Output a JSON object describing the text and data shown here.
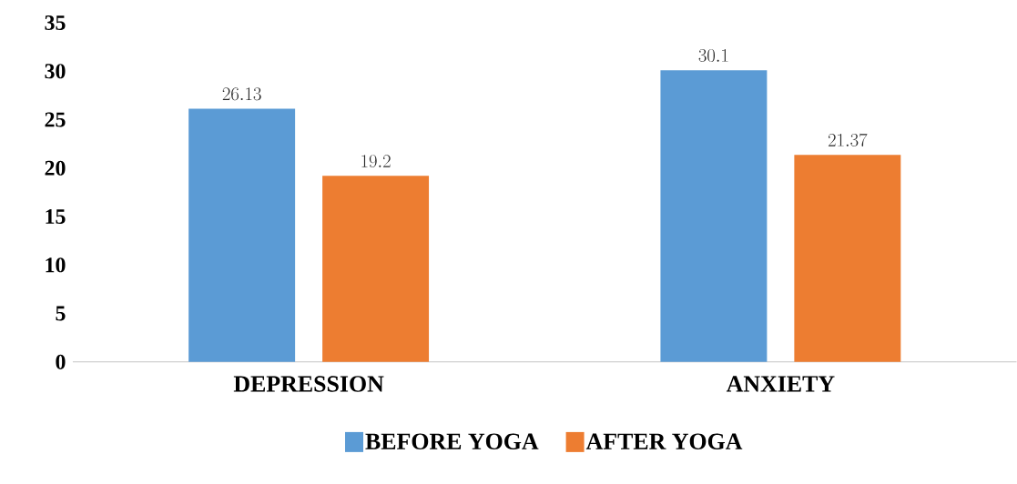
{
  "chart_data": {
    "type": "bar",
    "categories": [
      "DEPRESSION",
      "ANXIETY"
    ],
    "series": [
      {
        "name": "BEFORE YOGA",
        "color": "#5b9bd5",
        "values": [
          26.13,
          30.1
        ]
      },
      {
        "name": "AFTER YOGA",
        "color": "#ed7d31",
        "values": [
          19.2,
          21.37
        ]
      }
    ],
    "ylim": [
      0,
      35
    ],
    "yticks": [
      0,
      5,
      10,
      15,
      20,
      25,
      30,
      35
    ],
    "data_labels": true,
    "legend": "bottom",
    "grid": false
  }
}
